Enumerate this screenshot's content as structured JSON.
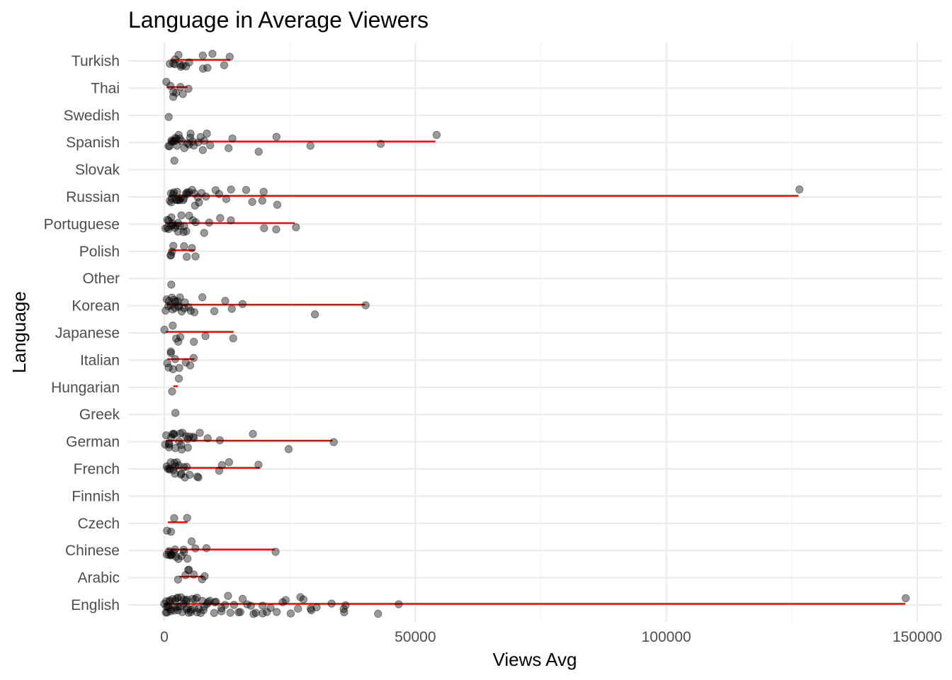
{
  "chart_data": {
    "type": "scatter",
    "title": "Language in Average Viewers",
    "xlabel": "Views Avg",
    "ylabel": "Language",
    "xlim": [
      -8000,
      155000
    ],
    "x_ticks": [
      0,
      50000,
      100000,
      150000
    ],
    "x_tick_labels": [
      "0",
      "50000",
      "100000",
      "150000"
    ],
    "grid": true,
    "categories": [
      "English",
      "Arabic",
      "Chinese",
      "Czech",
      "Finnish",
      "French",
      "German",
      "Greek",
      "Hungarian",
      "Italian",
      "Japanese",
      "Korean",
      "Other",
      "Polish",
      "Portuguese",
      "Russian",
      "Slovak",
      "Spanish",
      "Swedish",
      "Thai",
      "Turkish"
    ],
    "ranges": [
      {
        "language": "English",
        "min": 0,
        "max": 147600
      },
      {
        "language": "Arabic",
        "min": 3000,
        "max": 7800
      },
      {
        "language": "Chinese",
        "min": 500,
        "max": 22000
      },
      {
        "language": "Czech",
        "min": 700,
        "max": 4600
      },
      {
        "language": "French",
        "min": 400,
        "max": 19000
      },
      {
        "language": "German",
        "min": 300,
        "max": 33500
      },
      {
        "language": "Hungarian",
        "min": 1800,
        "max": 2700
      },
      {
        "language": "Italian",
        "min": 600,
        "max": 6000
      },
      {
        "language": "Japanese",
        "min": 300,
        "max": 13800
      },
      {
        "language": "Korean",
        "min": 400,
        "max": 40000
      },
      {
        "language": "Polish",
        "min": 1000,
        "max": 6100
      },
      {
        "language": "Portuguese",
        "min": 200,
        "max": 26000
      },
      {
        "language": "Russian",
        "min": 900,
        "max": 126300
      },
      {
        "language": "Spanish",
        "min": 900,
        "max": 54000
      },
      {
        "language": "Thai",
        "min": 500,
        "max": 4600
      },
      {
        "language": "Turkish",
        "min": 1200,
        "max": 13100
      }
    ],
    "points": {
      "Turkish": [
        1200,
        1500,
        2000,
        2600,
        3000,
        3800,
        4500,
        5100,
        7500,
        8400,
        9600,
        12000,
        13100,
        7500,
        2200,
        3500
      ],
      "Thai": [
        500,
        1200,
        1800,
        2500,
        3000,
        3800,
        4600,
        2000
      ],
      "Swedish": [
        1100
      ],
      "Spanish": [
        900,
        1200,
        1500,
        1800,
        2100,
        2400,
        2800,
        3200,
        3600,
        4000,
        4400,
        4800,
        5200,
        5600,
        6000,
        6500,
        7200,
        7600,
        8400,
        9200,
        12700,
        13400,
        18800,
        22300,
        28900,
        43000,
        54000,
        3000,
        1300,
        2200,
        5000,
        8000
      ],
      "Slovak": [
        2100
      ],
      "Russian": [
        900,
        1100,
        1300,
        1600,
        1900,
        2200,
        2500,
        2800,
        3100,
        3400,
        3800,
        4200,
        4600,
        5000,
        5500,
        6000,
        6500,
        7000,
        8300,
        10000,
        11200,
        12400,
        13500,
        16500,
        17400,
        19600,
        19800,
        22600,
        126300,
        1500,
        2700,
        3600,
        4400,
        5800,
        7400
      ],
      "Portuguese": [
        200,
        500,
        800,
        1100,
        1400,
        1700,
        2000,
        2400,
        2800,
        3200,
        3600,
        4000,
        4500,
        5000,
        6000,
        8200,
        9000,
        10900,
        13000,
        19600,
        22300,
        26000,
        700,
        1300,
        1900,
        2600,
        3300,
        5500
      ],
      "Polish": [
        1000,
        1300,
        2000,
        3700,
        4600,
        5300,
        6100,
        1500
      ],
      "Other": [
        1200
      ],
      "Korean": [
        400,
        700,
        1000,
        1300,
        1600,
        1900,
        2200,
        2500,
        2800,
        3100,
        3500,
        3900,
        4300,
        4800,
        5300,
        7300,
        9800,
        12300,
        13200,
        15600,
        29900,
        40000,
        800,
        1500,
        2300,
        3300,
        6000
      ],
      "Japanese": [
        300,
        1400,
        2300,
        2600,
        3000,
        5800,
        8400,
        13800
      ],
      "Italian": [
        600,
        900,
        1200,
        1500,
        1800,
        2400,
        3000,
        4000,
        5000,
        6000
      ],
      "Hungarian": [
        1800,
        2700
      ],
      "Greek": [
        2000
      ],
      "German": [
        300,
        600,
        900,
        1200,
        1500,
        1800,
        2100,
        2400,
        2700,
        3000,
        3400,
        3800,
        4200,
        4600,
        5000,
        5600,
        7200,
        8700,
        11100,
        17900,
        25000,
        33500,
        1100,
        2000,
        3300,
        4400,
        6100
      ],
      "French": [
        400,
        700,
        1000,
        1300,
        1600,
        1900,
        2200,
        2500,
        2900,
        3300,
        3700,
        4100,
        4500,
        5000,
        6300,
        7000,
        10800,
        11500,
        12700,
        19000,
        1100,
        2300,
        3500
      ],
      "Finnish": [],
      "Czech": [
        700,
        1400,
        2000,
        4600
      ],
      "Chinese": [
        500,
        800,
        1100,
        1400,
        1700,
        2000,
        2400,
        2800,
        3200,
        3700,
        4200,
        4800,
        5500,
        6400,
        8400,
        22000,
        1200,
        2600
      ],
      "Arabic": [
        3000,
        4300,
        5100,
        5600,
        7300,
        7800,
        4600
      ],
      "English": [
        0,
        200,
        400,
        600,
        800,
        1000,
        1200,
        1400,
        1600,
        1800,
        2000,
        2300,
        2600,
        2900,
        3200,
        3500,
        3800,
        4100,
        4400,
        4700,
        5000,
        5400,
        5800,
        6200,
        6600,
        7000,
        7500,
        8000,
        8600,
        9200,
        9800,
        10500,
        11200,
        12000,
        12800,
        13600,
        14600,
        15500,
        16500,
        17500,
        18500,
        19800,
        21000,
        22300,
        23700,
        25100,
        26500,
        27800,
        28900,
        30400,
        33100,
        35700,
        36300,
        42500,
        46700,
        147600,
        300,
        900,
        1500,
        2100,
        2700,
        3300,
        3900,
        4500,
        5100,
        5700,
        6400,
        7100,
        7900,
        8800,
        10100,
        11600,
        13300,
        15000,
        17100,
        19300,
        20500,
        24400,
        27300,
        29400,
        35800
      ]
    }
  }
}
